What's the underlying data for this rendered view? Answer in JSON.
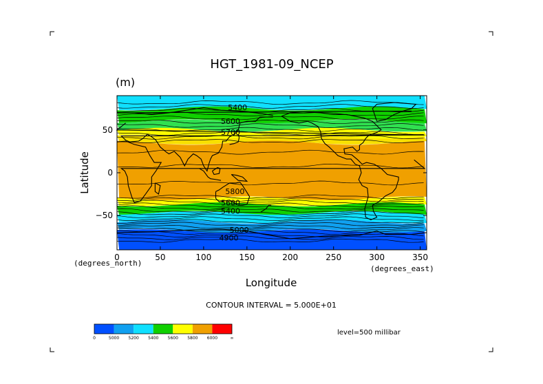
{
  "chart_data": {
    "type": "heatmap",
    "title": "HGT_1981-09_NCEP",
    "subtitle": "(m)",
    "xlabel": "Longitude",
    "ylabel": "Latitude",
    "x_units_label": "(degrees_east)",
    "y_units_label": "(degrees_north)",
    "xlim": [
      0,
      357.5
    ],
    "ylim": [
      -90,
      90
    ],
    "xticks": [
      0,
      50,
      100,
      150,
      200,
      250,
      300,
      350
    ],
    "yticks": [
      -50,
      0,
      50
    ],
    "contour_interval_label": "CONTOUR INTERVAL = 5.000E+01",
    "level_label": "level=500 millibar",
    "contour_labels": [
      {
        "text": "5400",
        "lon": 128,
        "lat": 73
      },
      {
        "text": "5600",
        "lon": 120,
        "lat": 57
      },
      {
        "text": "5700",
        "lon": 120,
        "lat": 44
      },
      {
        "text": "5800",
        "lon": 125,
        "lat": -25
      },
      {
        "text": "5600",
        "lon": 120,
        "lat": -38
      },
      {
        "text": "5400",
        "lon": 120,
        "lat": -48
      },
      {
        "text": "5000",
        "lon": 130,
        "lat": -70
      },
      {
        "text": "4900",
        "lon": 118,
        "lat": -79
      }
    ],
    "color_bands": [
      {
        "lat_min": 75,
        "lat_max": 90,
        "color": "#10e0ff",
        "level": 5200
      },
      {
        "lat_min": 60,
        "lat_max": 75,
        "color": "#10d000",
        "level": 5400
      },
      {
        "lat_min": 50,
        "lat_max": 60,
        "color": "#30e050",
        "level": 5500
      },
      {
        "lat_min": 42,
        "lat_max": 50,
        "color": "#ffff00",
        "level": 5600
      },
      {
        "lat_min": 35,
        "lat_max": 42,
        "color": "#f8e000",
        "level": 5700
      },
      {
        "lat_min": -30,
        "lat_max": 35,
        "color": "#f0a000",
        "level": 5800
      },
      {
        "lat_min": -37,
        "lat_max": -30,
        "color": "#ffff00",
        "level": 5700
      },
      {
        "lat_min": -47,
        "lat_max": -37,
        "color": "#10d000",
        "level": 5500
      },
      {
        "lat_min": -57,
        "lat_max": -47,
        "color": "#10e0ff",
        "level": 5300
      },
      {
        "lat_min": -68,
        "lat_max": -57,
        "color": "#10a0f0",
        "level": 5100
      },
      {
        "lat_min": -90,
        "lat_max": -68,
        "color": "#0050ff",
        "level": 5000
      }
    ],
    "colorbar": {
      "colors": [
        "#0050ff",
        "#10a0f0",
        "#10e0ff",
        "#10d000",
        "#ffff00",
        "#f0a000",
        "#ff0000"
      ],
      "labels": [
        "0",
        "5000",
        "5200",
        "5400",
        "5600",
        "5800",
        "6000",
        "∞"
      ]
    }
  }
}
